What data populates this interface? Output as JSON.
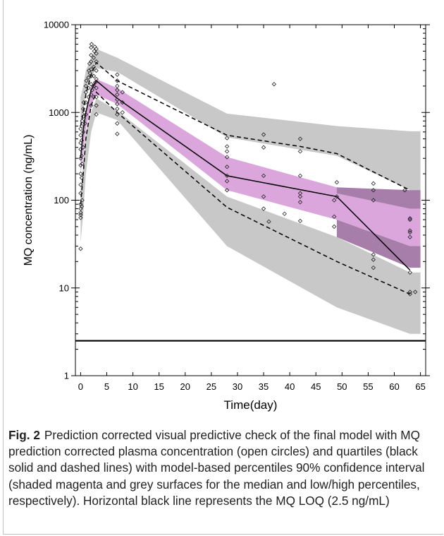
{
  "caption": {
    "label": "Fig. 2",
    "text": "Prediction corrected visual predictive check of the final model with MQ prediction corrected plasma concentration (open circles) and quartiles (black solid and dashed lines) with model-based percentiles 90% confidence interval (shaded magenta and grey surfaces for the median and low/high percentiles, respectively). Horizontal black line represents the MQ LOQ (2.5 ng/mL)"
  },
  "chart_data": {
    "type": "scatter",
    "title": "",
    "xlabel": "Time(day)",
    "ylabel": "MQ concentration (ng/mL)",
    "xlim": [
      -1,
      66
    ],
    "ylim": [
      1,
      10000
    ],
    "y_scale": "log",
    "x_ticks": [
      0,
      5,
      10,
      15,
      20,
      25,
      30,
      35,
      40,
      45,
      50,
      55,
      60,
      65
    ],
    "y_ticks": [
      1,
      10,
      100,
      1000,
      10000
    ],
    "y_tick_labels": [
      "1",
      "10",
      "100",
      "1000",
      "10000"
    ],
    "colors": {
      "grey_band": "#c8c8c8",
      "magenta_band": "#dba6dc",
      "overlap": "#a77ea9",
      "line": "#000000"
    },
    "loq": 2.5,
    "grey_band_high": {
      "x": [
        0,
        0.5,
        1,
        2,
        3,
        7,
        28,
        49,
        63,
        65
      ],
      "lower": [
        700,
        1050,
        1700,
        2500,
        3200,
        2900,
        520,
        320,
        130,
        120
      ],
      "upper": [
        1500,
        2000,
        3000,
        4200,
        5300,
        4200,
        970,
        700,
        610,
        610
      ]
    },
    "grey_band_low": {
      "x": [
        0,
        0.5,
        1,
        2,
        3,
        7,
        28,
        49,
        63,
        65
      ],
      "lower": [
        33,
        70,
        200,
        600,
        1000,
        820,
        30,
        6,
        3,
        3
      ],
      "upper": [
        130,
        250,
        600,
        1000,
        1450,
        1050,
        110,
        38,
        15,
        15
      ]
    },
    "magenta_band": {
      "x": [
        0,
        0.5,
        1,
        2,
        3,
        7,
        28,
        49,
        63,
        65
      ],
      "lower": [
        200,
        330,
        650,
        1200,
        1600,
        1250,
        130,
        60,
        30,
        30
      ],
      "upper": [
        350,
        600,
        1000,
        2000,
        2400,
        1900,
        310,
        140,
        90,
        90
      ]
    },
    "overlap_band": {
      "x": [
        49,
        63,
        65
      ],
      "lower": [
        38,
        17,
        17
      ],
      "upper": [
        60,
        30,
        30
      ]
    },
    "overlap_band_top": {
      "x": [
        49,
        63,
        65
      ],
      "lower": [
        120,
        80,
        80
      ],
      "upper": [
        140,
        130,
        130
      ]
    },
    "series": [
      {
        "style": "solid",
        "x": [
          0,
          0.5,
          1,
          2,
          3,
          7,
          28,
          49,
          63
        ],
        "y": [
          300,
          620,
          1000,
          1800,
          2300,
          1450,
          190,
          110,
          16
        ]
      },
      {
        "style": "dashed",
        "x": [
          0,
          0.5,
          1,
          2,
          3,
          7,
          28,
          42,
          49,
          63
        ],
        "y": [
          700,
          1000,
          1600,
          2700,
          3700,
          2300,
          550,
          410,
          340,
          130
        ]
      },
      {
        "style": "dashed",
        "x": [
          0,
          0.5,
          1,
          2,
          3,
          7,
          28,
          49,
          63
        ],
        "y": [
          90,
          200,
          500,
          1200,
          1700,
          1000,
          83,
          20,
          8.5
        ]
      }
    ],
    "points": [
      [
        0,
        28
      ],
      [
        0,
        63
      ],
      [
        0,
        68
      ],
      [
        0,
        72
      ],
      [
        0,
        80
      ],
      [
        0,
        90
      ],
      [
        0,
        120
      ],
      [
        0,
        150
      ],
      [
        0,
        200
      ],
      [
        0,
        250
      ],
      [
        0,
        300
      ],
      [
        0,
        380
      ],
      [
        0,
        450
      ],
      [
        0,
        550
      ],
      [
        0,
        650
      ],
      [
        0.2,
        85
      ],
      [
        0.2,
        180
      ],
      [
        0.2,
        320
      ],
      [
        0.2,
        480
      ],
      [
        0.2,
        700
      ],
      [
        0.3,
        100
      ],
      [
        0.3,
        260
      ],
      [
        0.3,
        800
      ],
      [
        0.5,
        400
      ],
      [
        0.5,
        600
      ],
      [
        0.5,
        900
      ],
      [
        0.5,
        1100
      ],
      [
        0.6,
        1300
      ],
      [
        0.7,
        1000
      ],
      [
        0.8,
        750
      ],
      [
        1,
        950
      ],
      [
        1,
        1300
      ],
      [
        1,
        1700
      ],
      [
        1,
        2000
      ],
      [
        1.1,
        2300
      ],
      [
        1.5,
        1500
      ],
      [
        1.5,
        1900
      ],
      [
        1.5,
        2500
      ],
      [
        1.6,
        3000
      ],
      [
        1.7,
        3600
      ],
      [
        1.8,
        2800
      ],
      [
        2,
        1200
      ],
      [
        2,
        1600
      ],
      [
        2,
        2100
      ],
      [
        2,
        2600
      ],
      [
        2,
        3100
      ],
      [
        2,
        3800
      ],
      [
        2,
        4500
      ],
      [
        2,
        5500
      ],
      [
        2.1,
        6000
      ],
      [
        2.2,
        1800
      ],
      [
        2.5,
        1500
      ],
      [
        2.5,
        2000
      ],
      [
        2.5,
        2600
      ],
      [
        2.5,
        3300
      ],
      [
        2.5,
        4200
      ],
      [
        2.6,
        5000
      ],
      [
        2.7,
        5600
      ],
      [
        2.8,
        2200
      ],
      [
        3,
        950
      ],
      [
        3,
        1200
      ],
      [
        3,
        1500
      ],
      [
        3,
        1900
      ],
      [
        3,
        2400
      ],
      [
        3,
        3000
      ],
      [
        3,
        3800
      ],
      [
        3,
        4700
      ],
      [
        3,
        5300
      ],
      [
        7,
        570
      ],
      [
        7,
        750
      ],
      [
        7,
        950
      ],
      [
        7,
        1100
      ],
      [
        7,
        1250
      ],
      [
        7,
        1400
      ],
      [
        7,
        1600
      ],
      [
        7,
        1800
      ],
      [
        7,
        2000
      ],
      [
        7,
        2300
      ],
      [
        7,
        2700
      ],
      [
        8,
        1000
      ],
      [
        8,
        1300
      ],
      [
        8,
        1700
      ],
      [
        28,
        130
      ],
      [
        28,
        165
      ],
      [
        28,
        190
      ],
      [
        28,
        240
      ],
      [
        28,
        310
      ],
      [
        28,
        360
      ],
      [
        28,
        410
      ],
      [
        28,
        510
      ],
      [
        35,
        80
      ],
      [
        35,
        110
      ],
      [
        35,
        190
      ],
      [
        35,
        400
      ],
      [
        35,
        560
      ],
      [
        36,
        57
      ],
      [
        37,
        2100
      ],
      [
        39,
        70
      ],
      [
        42,
        58
      ],
      [
        42,
        95
      ],
      [
        42,
        110
      ],
      [
        42,
        120
      ],
      [
        42,
        190
      ],
      [
        42,
        360
      ],
      [
        42,
        500
      ],
      [
        48.5,
        50
      ],
      [
        48.5,
        65
      ],
      [
        48.5,
        100
      ],
      [
        49,
        110
      ],
      [
        49,
        160
      ],
      [
        56,
        17
      ],
      [
        56,
        21
      ],
      [
        56,
        24
      ],
      [
        56,
        100
      ],
      [
        56,
        130
      ],
      [
        56,
        155
      ],
      [
        62,
        130
      ],
      [
        63,
        38
      ],
      [
        63,
        43
      ],
      [
        63,
        45
      ],
      [
        63,
        60
      ],
      [
        63,
        62
      ],
      [
        63,
        15
      ],
      [
        63,
        9
      ],
      [
        63,
        8.5
      ],
      [
        64,
        9
      ]
    ]
  }
}
